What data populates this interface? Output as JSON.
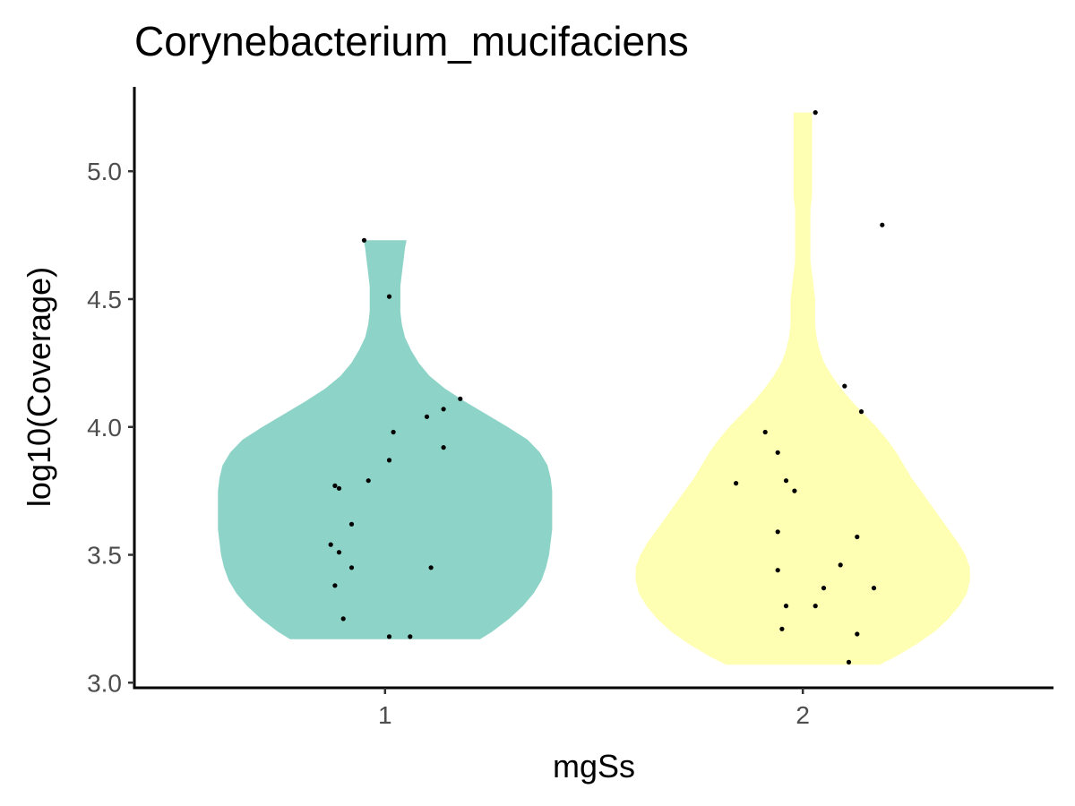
{
  "chart_data": {
    "type": "violin",
    "title": "Corynebacterium_mucifaciens",
    "xlabel": "mgSs",
    "ylabel": "log10(Coverage)",
    "categories": [
      "1",
      "2"
    ],
    "ylim": [
      2.98,
      5.33
    ],
    "yticks": [
      3.0,
      3.5,
      4.0,
      4.5,
      5.0
    ],
    "ytick_labels": [
      "3.0",
      "3.5",
      "4.0",
      "4.5",
      "5.0"
    ],
    "grid": false,
    "legend": "none",
    "series": [
      {
        "category": "1",
        "color": "#8DD3C7",
        "density": [
          [
            3.17,
            0.62
          ],
          [
            3.2,
            0.7
          ],
          [
            3.25,
            0.81
          ],
          [
            3.3,
            0.9
          ],
          [
            3.35,
            0.97
          ],
          [
            3.4,
            1.02
          ],
          [
            3.45,
            1.05
          ],
          [
            3.5,
            1.07
          ],
          [
            3.55,
            1.08
          ],
          [
            3.6,
            1.09
          ],
          [
            3.65,
            1.09
          ],
          [
            3.7,
            1.09
          ],
          [
            3.75,
            1.09
          ],
          [
            3.8,
            1.08
          ],
          [
            3.85,
            1.06
          ],
          [
            3.9,
            1.01
          ],
          [
            3.95,
            0.93
          ],
          [
            4.0,
            0.8
          ],
          [
            4.05,
            0.66
          ],
          [
            4.1,
            0.52
          ],
          [
            4.15,
            0.39
          ],
          [
            4.2,
            0.29
          ],
          [
            4.25,
            0.22
          ],
          [
            4.3,
            0.17
          ],
          [
            4.35,
            0.13
          ],
          [
            4.4,
            0.11
          ],
          [
            4.45,
            0.1
          ],
          [
            4.5,
            0.1
          ],
          [
            4.55,
            0.1
          ],
          [
            4.6,
            0.11
          ],
          [
            4.65,
            0.12
          ],
          [
            4.7,
            0.13
          ],
          [
            4.73,
            0.14
          ]
        ],
        "points": [
          [
            0.95,
            4.73
          ],
          [
            1.01,
            4.51
          ],
          [
            1.18,
            4.11
          ],
          [
            1.14,
            4.07
          ],
          [
            1.1,
            4.04
          ],
          [
            1.02,
            3.98
          ],
          [
            1.14,
            3.92
          ],
          [
            1.01,
            3.87
          ],
          [
            0.96,
            3.79
          ],
          [
            0.88,
            3.77
          ],
          [
            0.89,
            3.76
          ],
          [
            0.92,
            3.62
          ],
          [
            0.87,
            3.54
          ],
          [
            0.89,
            3.51
          ],
          [
            0.92,
            3.45
          ],
          [
            1.11,
            3.45
          ],
          [
            0.88,
            3.38
          ],
          [
            0.9,
            3.25
          ],
          [
            1.01,
            3.18
          ],
          [
            1.06,
            3.18
          ]
        ]
      },
      {
        "category": "2",
        "color": "#FFFFB3",
        "density": [
          [
            3.07,
            0.5
          ],
          [
            3.1,
            0.6
          ],
          [
            3.15,
            0.74
          ],
          [
            3.2,
            0.86
          ],
          [
            3.25,
            0.95
          ],
          [
            3.3,
            1.02
          ],
          [
            3.35,
            1.07
          ],
          [
            3.4,
            1.09
          ],
          [
            3.45,
            1.09
          ],
          [
            3.5,
            1.06
          ],
          [
            3.55,
            1.01
          ],
          [
            3.6,
            0.95
          ],
          [
            3.65,
            0.89
          ],
          [
            3.7,
            0.83
          ],
          [
            3.75,
            0.77
          ],
          [
            3.8,
            0.71
          ],
          [
            3.85,
            0.66
          ],
          [
            3.9,
            0.61
          ],
          [
            3.95,
            0.55
          ],
          [
            4.0,
            0.48
          ],
          [
            4.05,
            0.4
          ],
          [
            4.1,
            0.32
          ],
          [
            4.15,
            0.25
          ],
          [
            4.2,
            0.19
          ],
          [
            4.25,
            0.14
          ],
          [
            4.3,
            0.11
          ],
          [
            4.35,
            0.09
          ],
          [
            4.4,
            0.08
          ],
          [
            4.45,
            0.08
          ],
          [
            4.5,
            0.08
          ],
          [
            4.55,
            0.07
          ],
          [
            4.6,
            0.06
          ],
          [
            4.65,
            0.05
          ],
          [
            4.7,
            0.05
          ],
          [
            4.75,
            0.05
          ],
          [
            4.8,
            0.05
          ],
          [
            4.85,
            0.05
          ],
          [
            4.9,
            0.06
          ],
          [
            4.95,
            0.06
          ],
          [
            5.0,
            0.06
          ],
          [
            5.05,
            0.06
          ],
          [
            5.1,
            0.06
          ],
          [
            5.15,
            0.06
          ],
          [
            5.2,
            0.06
          ],
          [
            5.23,
            0.06
          ]
        ],
        "points": [
          [
            2.03,
            5.23
          ],
          [
            2.19,
            4.79
          ],
          [
            2.1,
            4.16
          ],
          [
            2.14,
            4.06
          ],
          [
            1.91,
            3.98
          ],
          [
            1.94,
            3.9
          ],
          [
            1.84,
            3.78
          ],
          [
            1.96,
            3.79
          ],
          [
            1.98,
            3.75
          ],
          [
            1.94,
            3.59
          ],
          [
            2.13,
            3.57
          ],
          [
            2.09,
            3.46
          ],
          [
            1.94,
            3.44
          ],
          [
            2.17,
            3.37
          ],
          [
            2.05,
            3.37
          ],
          [
            1.96,
            3.3
          ],
          [
            2.03,
            3.3
          ],
          [
            1.95,
            3.21
          ],
          [
            2.13,
            3.19
          ],
          [
            2.11,
            3.08
          ]
        ]
      }
    ]
  }
}
